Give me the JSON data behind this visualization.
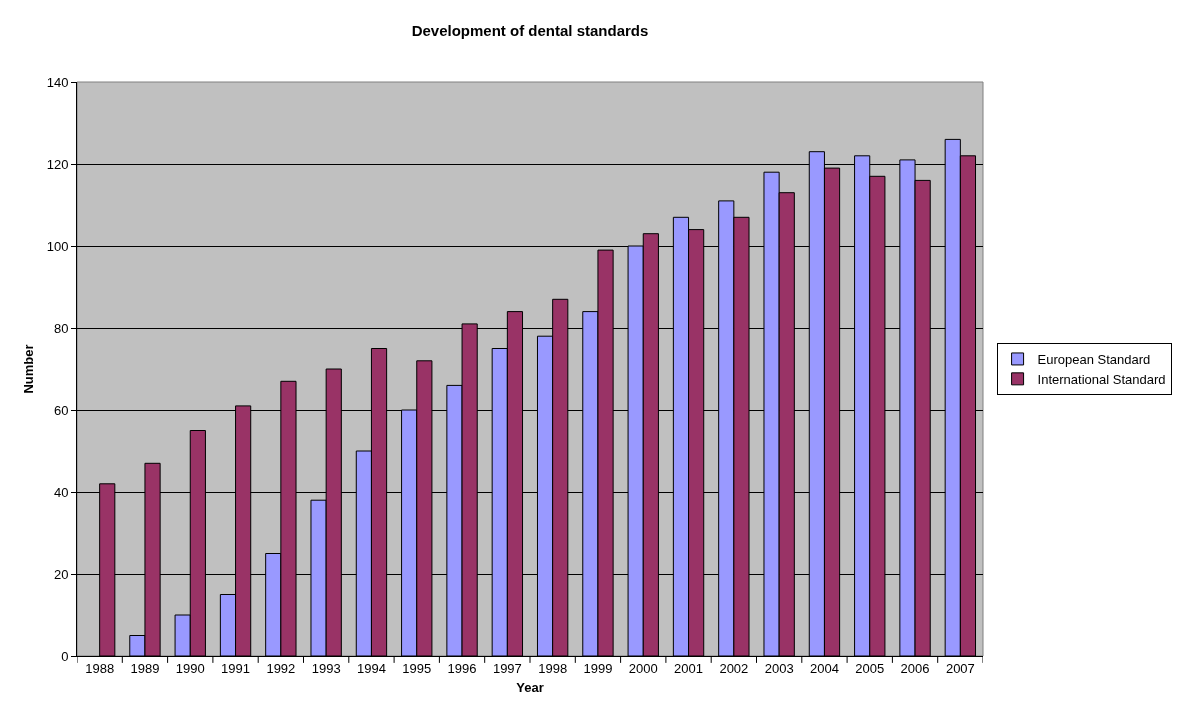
{
  "chart_data": {
    "type": "bar",
    "title": "Development of dental standards",
    "xlabel": "Year",
    "ylabel": "Number",
    "categories": [
      "1988",
      "1989",
      "1990",
      "1991",
      "1992",
      "1993",
      "1994",
      "1995",
      "1996",
      "1997",
      "1998",
      "1999",
      "2000",
      "2001",
      "2002",
      "2003",
      "2004",
      "2005",
      "2006",
      "2007"
    ],
    "series": [
      {
        "name": "European Standard",
        "color": "#9999ff",
        "values": [
          null,
          5,
          10,
          15,
          25,
          38,
          50,
          60,
          66,
          75,
          78,
          84,
          100,
          107,
          111,
          118,
          123,
          122,
          121,
          126
        ]
      },
      {
        "name": "International Standard",
        "color": "#993366",
        "values": [
          42,
          47,
          55,
          61,
          67,
          70,
          75,
          72,
          81,
          84,
          87,
          99,
          103,
          104,
          107,
          113,
          119,
          117,
          116,
          122
        ]
      }
    ],
    "ylim": [
      0,
      140
    ],
    "yticks": [
      0,
      20,
      40,
      60,
      80,
      100,
      120,
      140
    ],
    "grid": "y",
    "legend": "right"
  }
}
